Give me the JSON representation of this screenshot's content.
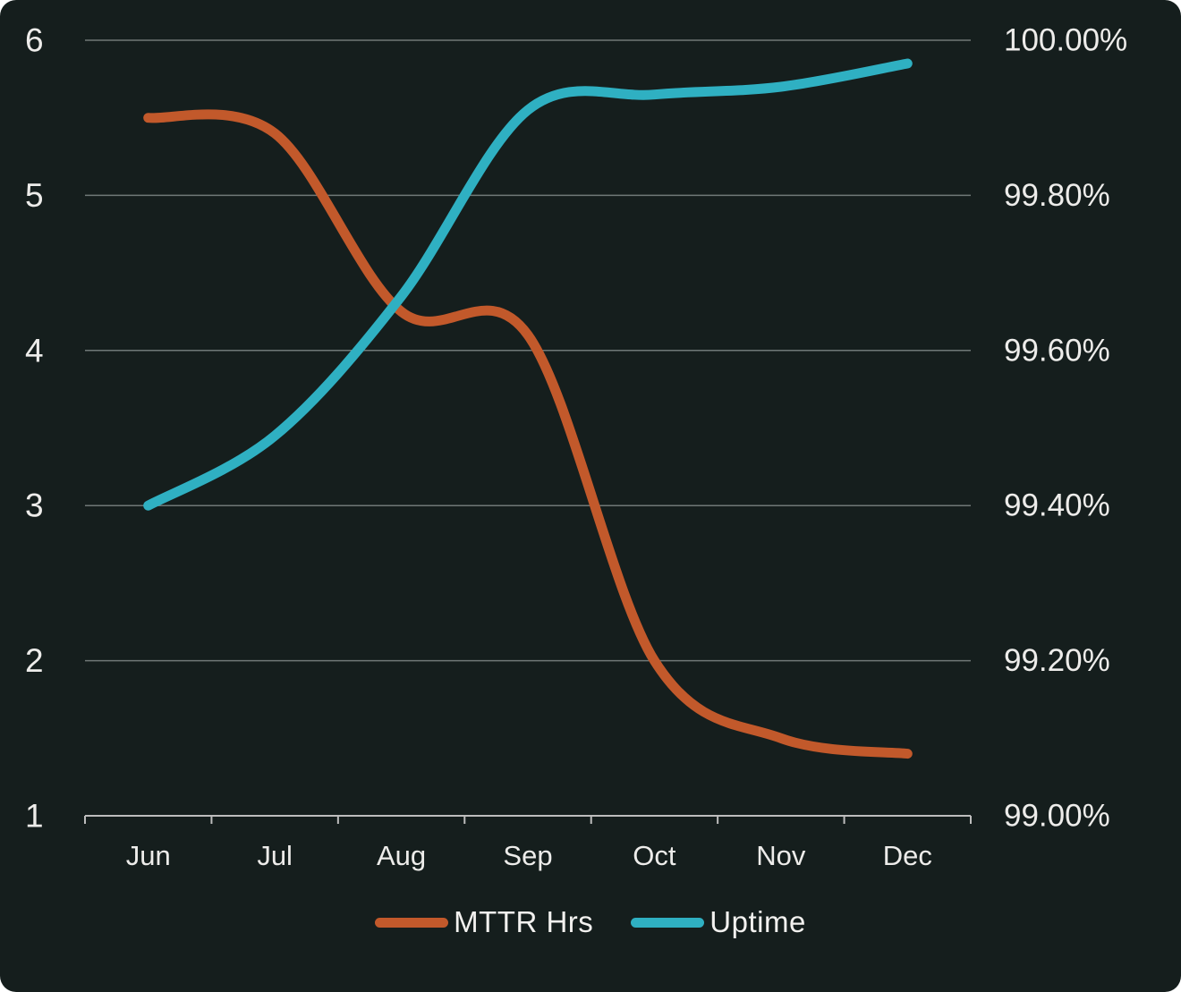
{
  "panel": {
    "background_color": "#151E1D",
    "grid_color": "#8F9695",
    "axis_line_color": "#BDBDBD",
    "text_color": "#EDECEA"
  },
  "chart_data": {
    "type": "line",
    "title": "",
    "categories": [
      "Jun",
      "Jul",
      "Aug",
      "Sep",
      "Oct",
      "Nov",
      "Dec"
    ],
    "series": [
      {
        "name": "MTTR Hrs",
        "axis": "left",
        "color": "#C2592B",
        "values": [
          5.5,
          5.4,
          4.25,
          4.1,
          2.0,
          1.5,
          1.4
        ]
      },
      {
        "name": "Uptime",
        "axis": "right",
        "color": "#2FB0C2",
        "values": [
          99.4,
          99.49,
          99.67,
          99.91,
          99.93,
          99.94,
          99.97
        ]
      }
    ],
    "left_axis": {
      "min": 1,
      "max": 6,
      "tick_step": 1,
      "tick_labels": [
        "6",
        "5",
        "4",
        "3",
        "2",
        "1"
      ]
    },
    "right_axis": {
      "min": 99.0,
      "max": 100.0,
      "tick_step": 0.2,
      "tick_labels": [
        "100.00%",
        "99.80%",
        "99.60%",
        "99.40%",
        "99.20%",
        "99.00%"
      ]
    },
    "grid": true,
    "legend_position": "bottom",
    "line_style": "smooth"
  }
}
